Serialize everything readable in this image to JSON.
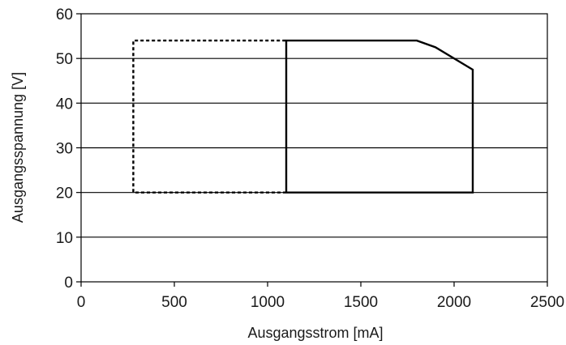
{
  "chart_data": {
    "type": "line",
    "xlabel": "Ausgangsstrom [mA]",
    "ylabel": "Ausgangsspannung [V]",
    "xlim": [
      0,
      2500
    ],
    "ylim": [
      0,
      60
    ],
    "x_ticks": [
      0,
      500,
      1000,
      1500,
      2000,
      2500
    ],
    "y_ticks": [
      0,
      10,
      20,
      30,
      40,
      50,
      60
    ],
    "grid": "horizontal",
    "legend": "none",
    "series": [
      {
        "style": "dashed",
        "color": "#000000",
        "points": [
          [
            1100,
            20
          ],
          [
            280,
            20
          ],
          [
            280,
            54
          ],
          [
            1100,
            54
          ]
        ]
      },
      {
        "style": "solid",
        "color": "#000000",
        "points": [
          [
            1100,
            20
          ],
          [
            1100,
            54
          ],
          [
            1800,
            54
          ],
          [
            1900,
            52.5
          ],
          [
            2100,
            47.5
          ],
          [
            2100,
            20
          ],
          [
            1100,
            20
          ]
        ]
      }
    ]
  }
}
